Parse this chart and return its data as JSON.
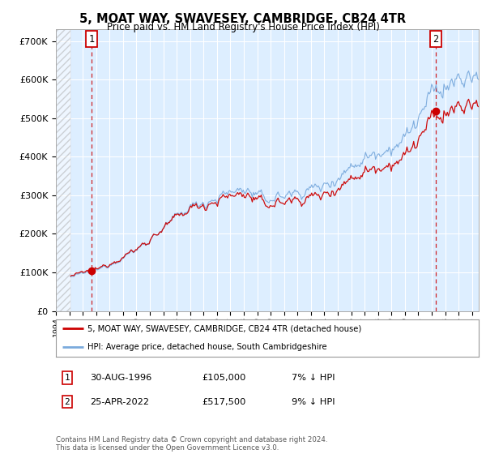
{
  "title": "5, MOAT WAY, SWAVESEY, CAMBRIDGE, CB24 4TR",
  "subtitle": "Price paid vs. HM Land Registry's House Price Index (HPI)",
  "legend_line1": "5, MOAT WAY, SWAVESEY, CAMBRIDGE, CB24 4TR (detached house)",
  "legend_line2": "HPI: Average price, detached house, South Cambridgeshire",
  "sale1_label": "1",
  "sale1_date": "30-AUG-1996",
  "sale1_price": 105000,
  "sale1_hpi_note": "7% ↓ HPI",
  "sale2_label": "2",
  "sale2_date": "25-APR-2022",
  "sale2_price": 517500,
  "sale2_hpi_note": "9% ↓ HPI",
  "footer": "Contains HM Land Registry data © Crown copyright and database right 2024.\nThis data is licensed under the Open Government Licence v3.0.",
  "hpi_color": "#7aaadd",
  "price_color": "#cc0000",
  "sale_marker_color": "#cc0000",
  "background_color": "#ffffff",
  "plot_bg_color": "#ddeeff",
  "hatch_color": "#aaaaaa",
  "grid_color": "#ffffff",
  "dashed_line_color": "#cc0000",
  "ylim": [
    0,
    730000
  ],
  "xlim_start": 1994.0,
  "xlim_end": 2025.5,
  "hatch_end": 1995.1,
  "sale1_year": 1996.667,
  "sale2_year": 2022.292,
  "data_start_year": 1995.1
}
